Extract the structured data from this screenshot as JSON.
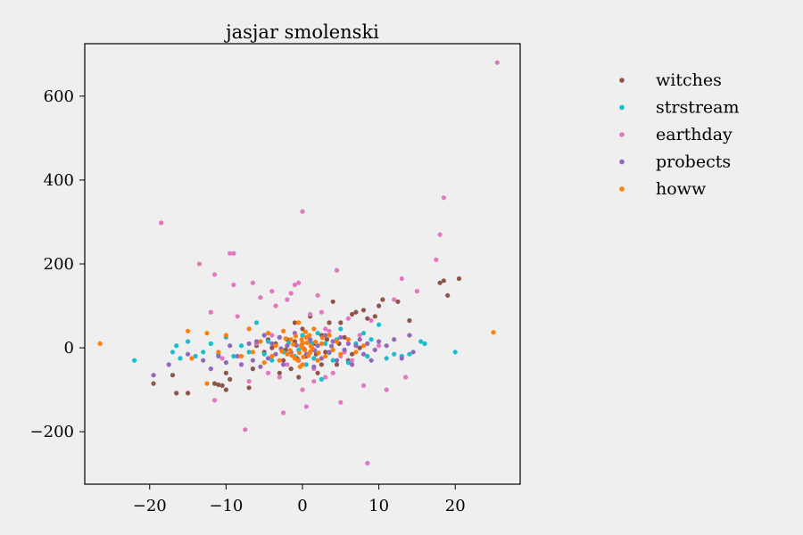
{
  "chart_data": {
    "type": "scatter",
    "title": "jasjar smolenski",
    "xlabel": "",
    "ylabel": "",
    "xlim": [
      -28.5,
      28.5
    ],
    "ylim": [
      -325,
      725
    ],
    "xticks": [
      -20,
      -10,
      0,
      10,
      20
    ],
    "xtick_labels": [
      "−20",
      "−10",
      "0",
      "10",
      "20"
    ],
    "yticks": [
      -200,
      0,
      200,
      400,
      600
    ],
    "ytick_labels": [
      "−200",
      "0",
      "200",
      "400",
      "600"
    ],
    "grid": false,
    "legend_position": "outside-right",
    "series": [
      {
        "name": "witches",
        "color": "#8c564b",
        "points": [
          [
            -19.5,
            -85
          ],
          [
            -17,
            -65
          ],
          [
            -16.5,
            -108
          ],
          [
            -15,
            -108
          ],
          [
            -11.5,
            -85
          ],
          [
            -11,
            -88
          ],
          [
            -10.5,
            -90
          ],
          [
            -10,
            -100
          ],
          [
            -10,
            -60
          ],
          [
            -9.5,
            -75
          ],
          [
            -7,
            -95
          ],
          [
            -6.5,
            -50
          ],
          [
            -5,
            -10
          ],
          [
            -4,
            0
          ],
          [
            -3,
            -60
          ],
          [
            -2.5,
            -30
          ],
          [
            -2,
            20
          ],
          [
            -1.5,
            -50
          ],
          [
            -1,
            60
          ],
          [
            -0.5,
            -70
          ],
          [
            0,
            45
          ],
          [
            0.5,
            -20
          ],
          [
            1,
            75
          ],
          [
            1.5,
            10
          ],
          [
            2,
            -60
          ],
          [
            2.5,
            -40
          ],
          [
            3,
            -10
          ],
          [
            3.5,
            60
          ],
          [
            4,
            110
          ],
          [
            4.5,
            -40
          ],
          [
            5,
            60
          ],
          [
            5.5,
            25
          ],
          [
            6,
            -30
          ],
          [
            6.5,
            80
          ],
          [
            7,
            85
          ],
          [
            8,
            90
          ],
          [
            8.5,
            70
          ],
          [
            9.5,
            75
          ],
          [
            10,
            100
          ],
          [
            10.5,
            115
          ],
          [
            12.5,
            110
          ],
          [
            14,
            65
          ],
          [
            18,
            155
          ],
          [
            18.5,
            160
          ],
          [
            19,
            125
          ],
          [
            20.5,
            165
          ],
          [
            1,
            -10
          ],
          [
            -1,
            15
          ],
          [
            2.5,
            30
          ],
          [
            -3.5,
            10
          ],
          [
            0.3,
            -5
          ],
          [
            -0.7,
            -25
          ],
          [
            1.8,
            -15
          ],
          [
            3.2,
            20
          ],
          [
            -2.2,
            -5
          ],
          [
            4.8,
            10
          ],
          [
            -4.5,
            20
          ],
          [
            6.5,
            -15
          ],
          [
            -6,
            5
          ],
          [
            7.5,
            0
          ]
        ]
      },
      {
        "name": "strstream",
        "color": "#17becf",
        "points": [
          [
            -22,
            -30
          ],
          [
            -17,
            -10
          ],
          [
            -16.5,
            5
          ],
          [
            -16,
            -25
          ],
          [
            -15,
            15
          ],
          [
            -14,
            -20
          ],
          [
            -13,
            -10
          ],
          [
            -12,
            10
          ],
          [
            -11,
            -15
          ],
          [
            -10,
            25
          ],
          [
            -9,
            -20
          ],
          [
            -8,
            5
          ],
          [
            -7,
            -10
          ],
          [
            -6,
            60
          ],
          [
            -5,
            -15
          ],
          [
            -4.5,
            15
          ],
          [
            -4,
            -30
          ],
          [
            -3,
            25
          ],
          [
            -2.5,
            -10
          ],
          [
            -2,
            5
          ],
          [
            -1,
            -20
          ],
          [
            0,
            30
          ],
          [
            0.5,
            -40
          ],
          [
            1,
            15
          ],
          [
            1.5,
            -25
          ],
          [
            2,
            35
          ],
          [
            2.5,
            -75
          ],
          [
            3,
            10
          ],
          [
            4,
            -30
          ],
          [
            4.5,
            20
          ],
          [
            5,
            45
          ],
          [
            6,
            -35
          ],
          [
            7,
            10
          ],
          [
            8,
            35
          ],
          [
            8.5,
            -20
          ],
          [
            9,
            20
          ],
          [
            10,
            55
          ],
          [
            11,
            -25
          ],
          [
            12,
            -15
          ],
          [
            13,
            -20
          ],
          [
            14,
            -15
          ],
          [
            15.5,
            15
          ],
          [
            16,
            10
          ],
          [
            20,
            -10
          ],
          [
            -0.5,
            -5
          ],
          [
            1.2,
            8
          ],
          [
            -1.8,
            12
          ],
          [
            3.5,
            -12
          ]
        ]
      },
      {
        "name": "earthday",
        "color": "#e377c2",
        "points": [
          [
            -18.5,
            298
          ],
          [
            -13.5,
            200
          ],
          [
            -12,
            85
          ],
          [
            -11.5,
            175
          ],
          [
            -11.5,
            -125
          ],
          [
            -10.5,
            -25
          ],
          [
            -9.5,
            225
          ],
          [
            -9,
            225
          ],
          [
            -9,
            150
          ],
          [
            -8.5,
            75
          ],
          [
            -7.5,
            -195
          ],
          [
            -7,
            -80
          ],
          [
            -6.5,
            155
          ],
          [
            -5.5,
            120
          ],
          [
            -4.5,
            -60
          ],
          [
            -4,
            135
          ],
          [
            -3.5,
            100
          ],
          [
            -3,
            -70
          ],
          [
            -2.5,
            -155
          ],
          [
            -2,
            115
          ],
          [
            -1.5,
            130
          ],
          [
            -1,
            150
          ],
          [
            -0.5,
            155
          ],
          [
            0,
            325
          ],
          [
            0,
            -100
          ],
          [
            0.5,
            -140
          ],
          [
            1,
            80
          ],
          [
            1.5,
            -80
          ],
          [
            2,
            125
          ],
          [
            2.5,
            85
          ],
          [
            3,
            -70
          ],
          [
            3.5,
            40
          ],
          [
            4,
            -60
          ],
          [
            4.5,
            185
          ],
          [
            5,
            -130
          ],
          [
            5.5,
            -10
          ],
          [
            6,
            70
          ],
          [
            6.5,
            -30
          ],
          [
            7.5,
            30
          ],
          [
            8,
            -90
          ],
          [
            8.5,
            -275
          ],
          [
            9,
            65
          ],
          [
            10,
            5
          ],
          [
            11,
            -100
          ],
          [
            12,
            115
          ],
          [
            13,
            165
          ],
          [
            13.5,
            -70
          ],
          [
            15,
            135
          ],
          [
            17.5,
            210
          ],
          [
            18,
            270
          ],
          [
            18.5,
            358
          ],
          [
            25.5,
            680
          ],
          [
            -2,
            -40
          ],
          [
            1.5,
            -50
          ],
          [
            3,
            45
          ],
          [
            -4,
            30
          ],
          [
            5,
            -20
          ],
          [
            -6,
            10
          ]
        ]
      },
      {
        "name": "probects",
        "color": "#9467bd",
        "points": [
          [
            -19.5,
            -65
          ],
          [
            -17.5,
            -40
          ],
          [
            -15,
            -15
          ],
          [
            -13,
            -30
          ],
          [
            -12,
            -50
          ],
          [
            -11,
            -20
          ],
          [
            -10,
            -35
          ],
          [
            -9.5,
            5
          ],
          [
            -8.5,
            -20
          ],
          [
            -8,
            -40
          ],
          [
            -7,
            10
          ],
          [
            -6.5,
            -30
          ],
          [
            -6,
            15
          ],
          [
            -5.5,
            -45
          ],
          [
            -5,
            30
          ],
          [
            -4.5,
            -25
          ],
          [
            -4,
            10
          ],
          [
            -3.5,
            -15
          ],
          [
            -3,
            25
          ],
          [
            -2.5,
            -40
          ],
          [
            -2,
            5
          ],
          [
            -1.5,
            -10
          ],
          [
            -1,
            35
          ],
          [
            -0.5,
            -30
          ],
          [
            0,
            10
          ],
          [
            0.5,
            -15
          ],
          [
            1,
            20
          ],
          [
            1.5,
            -45
          ],
          [
            2,
            5
          ],
          [
            2.5,
            -25
          ],
          [
            3,
            30
          ],
          [
            3.5,
            -10
          ],
          [
            4,
            15
          ],
          [
            4.5,
            -30
          ],
          [
            5,
            25
          ],
          [
            5.5,
            -5
          ],
          [
            6,
            10
          ],
          [
            6.5,
            -40
          ],
          [
            7,
            5
          ],
          [
            7.5,
            20
          ],
          [
            8,
            -15
          ],
          [
            8.5,
            10
          ],
          [
            9,
            -30
          ],
          [
            9.5,
            -5
          ],
          [
            10,
            15
          ],
          [
            11,
            5
          ],
          [
            12,
            20
          ],
          [
            13,
            -25
          ],
          [
            14,
            30
          ],
          [
            14.5,
            -10
          ],
          [
            0.2,
            -2
          ],
          [
            -0.8,
            6
          ],
          [
            1.6,
            -6
          ],
          [
            -2.8,
            -2
          ],
          [
            3.8,
            4
          ]
        ]
      },
      {
        "name": "howw",
        "color": "#ff7f0e",
        "points": [
          [
            -26.5,
            10
          ],
          [
            -15,
            40
          ],
          [
            -14.5,
            -25
          ],
          [
            -12.5,
            -85
          ],
          [
            -12.5,
            35
          ],
          [
            -11,
            -10
          ],
          [
            -10,
            30
          ],
          [
            -8,
            -20
          ],
          [
            -7,
            45
          ],
          [
            -6.5,
            -10
          ],
          [
            -5.5,
            15
          ],
          [
            -5,
            -35
          ],
          [
            -4.5,
            35
          ],
          [
            -4,
            -20
          ],
          [
            -3.5,
            5
          ],
          [
            -3,
            -30
          ],
          [
            -2.5,
            40
          ],
          [
            -2,
            -15
          ],
          [
            -1.5,
            20
          ],
          [
            -1,
            -25
          ],
          [
            -0.5,
            60
          ],
          [
            0,
            -40
          ],
          [
            0,
            0
          ],
          [
            0.5,
            25
          ],
          [
            1,
            -10
          ],
          [
            1.5,
            45
          ],
          [
            2,
            -30
          ],
          [
            2.5,
            10
          ],
          [
            3,
            -20
          ],
          [
            3.5,
            30
          ],
          [
            4,
            -5
          ],
          [
            4.5,
            15
          ],
          [
            5,
            -15
          ],
          [
            6,
            20
          ],
          [
            7,
            -10
          ],
          [
            8,
            5
          ],
          [
            25,
            37
          ],
          [
            -0.2,
            5
          ],
          [
            0.3,
            -5
          ],
          [
            -0.4,
            -12
          ],
          [
            0.6,
            12
          ],
          [
            -0.1,
            20
          ],
          [
            0.8,
            -18
          ],
          [
            -1.2,
            8
          ],
          [
            1.3,
            -2
          ],
          [
            -0.6,
            -30
          ],
          [
            0.9,
            30
          ],
          [
            -1.6,
            -6
          ],
          [
            1.7,
            14
          ],
          [
            -2.2,
            22
          ],
          [
            2.1,
            -12
          ],
          [
            0.1,
            -22
          ],
          [
            -0.9,
            28
          ],
          [
            1.1,
            4
          ],
          [
            -1.4,
            -18
          ],
          [
            0.4,
            38
          ],
          [
            -0.3,
            -45
          ],
          [
            2.6,
            24
          ],
          [
            -2.7,
            -8
          ],
          [
            0,
            12
          ]
        ]
      }
    ]
  }
}
